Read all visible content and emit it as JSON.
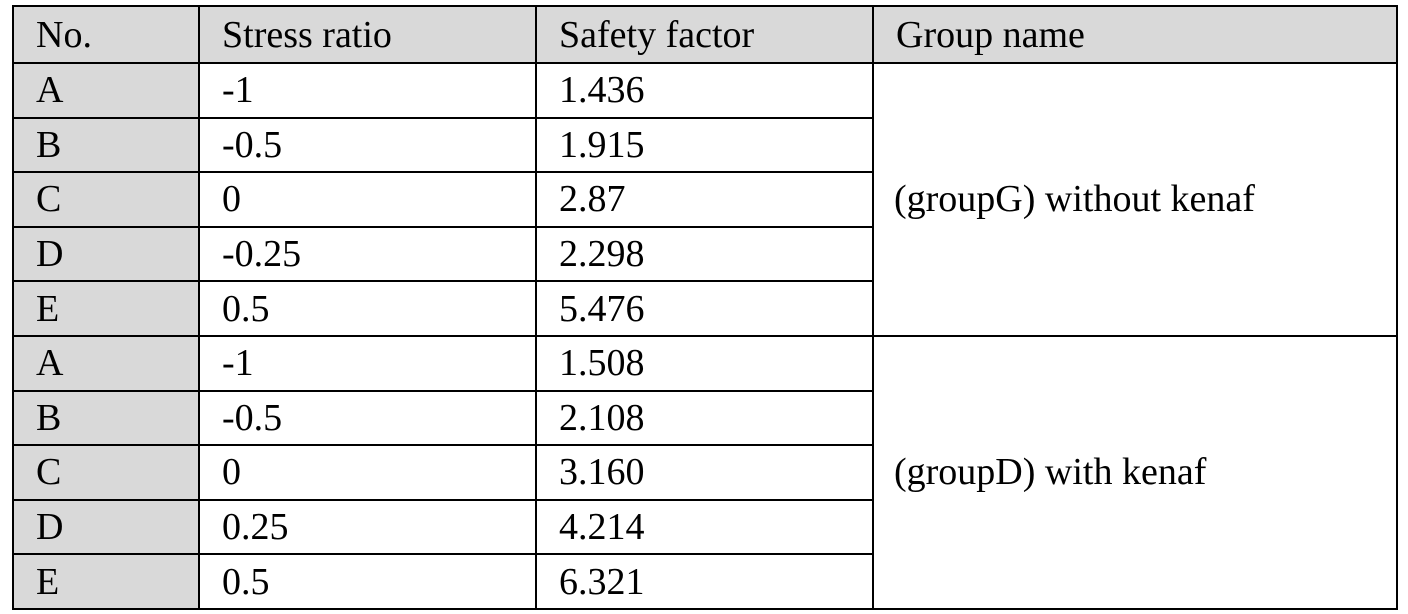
{
  "table": {
    "header": [
      "No.",
      "Stress ratio",
      "Safety factor",
      "Group name"
    ],
    "groups": [
      {
        "name": "(groupG) without kenaf",
        "rows": [
          [
            "A",
            "-1",
            "1.436"
          ],
          [
            "B",
            "-0.5",
            "1.915"
          ],
          [
            "C",
            "0",
            "2.87"
          ],
          [
            "D",
            "-0.25",
            "2.298"
          ],
          [
            "E",
            "0.5",
            "5.476"
          ]
        ]
      },
      {
        "name": "(groupD) with kenaf",
        "rows": [
          [
            "A",
            "-1",
            "1.508"
          ],
          [
            "B",
            "-0.5",
            "2.108"
          ],
          [
            "C",
            "0",
            "3.160"
          ],
          [
            "D",
            "0.25",
            "4.214"
          ],
          [
            "E",
            "0.5",
            "6.321"
          ]
        ]
      }
    ]
  }
}
